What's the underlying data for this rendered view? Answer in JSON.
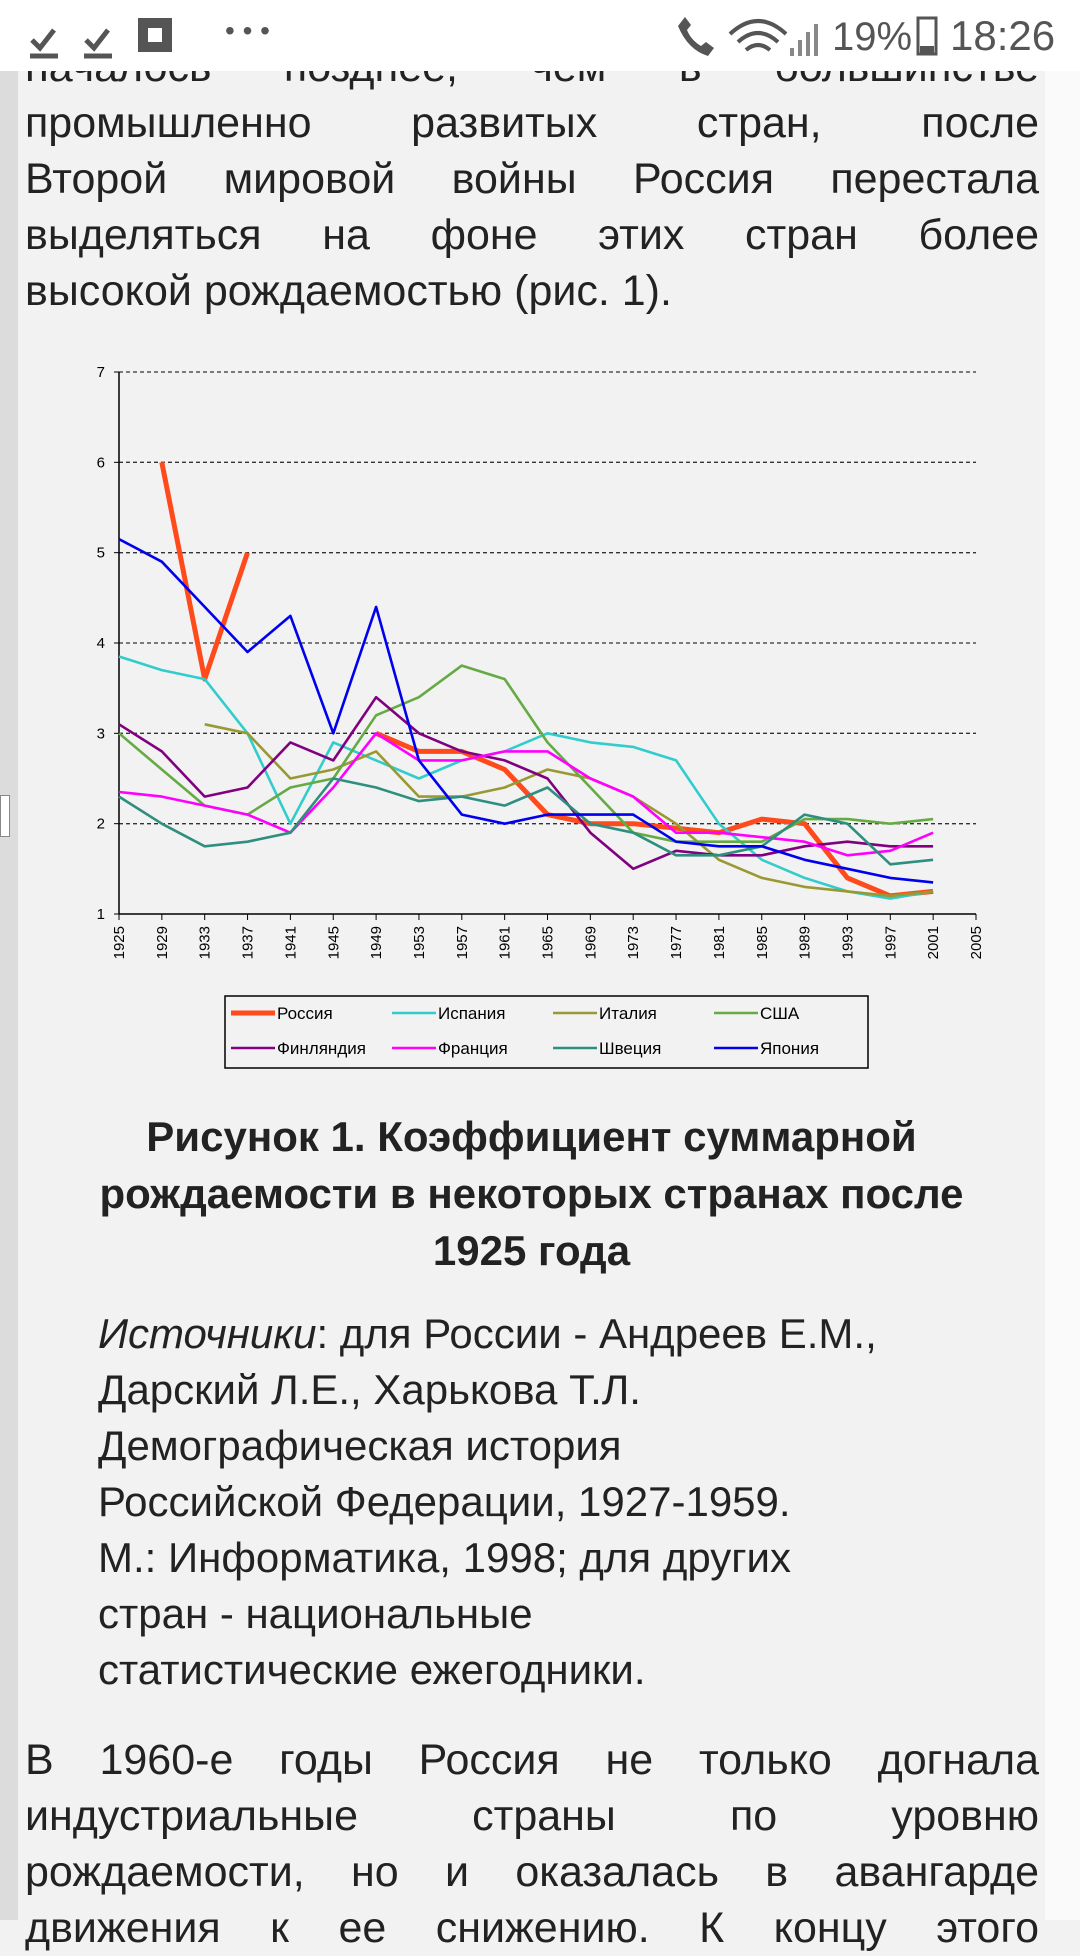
{
  "status_bar": {
    "battery": "19%",
    "time": "18:26"
  },
  "paragraph_1": {
    "lines": [
      "началось позднее, чем в большинстве",
      "промышленно развитых стран, после",
      "Второй мировой войны Россия перестала",
      "выделяться на фоне этих стран более",
      "высокой рождаемостью (рис. 1)."
    ]
  },
  "chart_data": {
    "type": "line",
    "x": [
      1925,
      1929,
      1933,
      1937,
      1941,
      1945,
      1949,
      1953,
      1957,
      1961,
      1965,
      1969,
      1973,
      1977,
      1981,
      1985,
      1989,
      1993,
      1997,
      2001,
      2005
    ],
    "xlim": [
      1925,
      2005
    ],
    "xticks": [
      1925,
      1929,
      1933,
      1937,
      1941,
      1945,
      1949,
      1953,
      1957,
      1961,
      1965,
      1969,
      1973,
      1977,
      1981,
      1985,
      1989,
      1993,
      1997,
      2001,
      2005
    ],
    "ylim": [
      1,
      7
    ],
    "yticks": [
      1,
      2,
      3,
      4,
      5,
      6,
      7
    ],
    "grid": true,
    "series": [
      {
        "name": "Россия",
        "color": "#ff4a1c",
        "values": [
          null,
          6.0,
          3.6,
          5.0,
          null,
          null,
          3.0,
          2.8,
          2.8,
          2.6,
          2.1,
          2.0,
          2.0,
          1.95,
          1.9,
          2.05,
          2.0,
          1.4,
          1.2,
          1.25,
          null
        ]
      },
      {
        "name": "Испания",
        "color": "#33cccc",
        "values": [
          3.85,
          3.7,
          3.6,
          3.0,
          2.0,
          2.9,
          2.7,
          2.5,
          2.7,
          2.8,
          3.0,
          2.9,
          2.85,
          2.7,
          2.0,
          1.6,
          1.4,
          1.25,
          1.17,
          1.25,
          null
        ]
      },
      {
        "name": "Италия",
        "color": "#999933",
        "values": [
          null,
          null,
          3.1,
          3.0,
          2.5,
          2.6,
          2.8,
          2.3,
          2.3,
          2.4,
          2.6,
          2.5,
          2.3,
          2.0,
          1.6,
          1.4,
          1.3,
          1.25,
          1.2,
          1.25,
          null
        ]
      },
      {
        "name": "США",
        "color": "#66aa44",
        "values": [
          3.0,
          2.6,
          2.2,
          2.1,
          2.4,
          2.5,
          3.2,
          3.4,
          3.75,
          3.6,
          2.9,
          2.4,
          1.9,
          1.8,
          1.8,
          1.8,
          2.05,
          2.05,
          2.0,
          2.05,
          null
        ]
      },
      {
        "name": "Финляндия",
        "color": "#800080",
        "values": [
          3.1,
          2.8,
          2.3,
          2.4,
          2.9,
          2.7,
          3.4,
          3.0,
          2.8,
          2.7,
          2.5,
          1.9,
          1.5,
          1.7,
          1.65,
          1.65,
          1.75,
          1.8,
          1.75,
          1.75,
          null
        ]
      },
      {
        "name": "Франция",
        "color": "#ff00ff",
        "values": [
          2.35,
          2.3,
          2.2,
          2.1,
          1.9,
          2.4,
          3.0,
          2.7,
          2.7,
          2.8,
          2.8,
          2.5,
          2.3,
          1.9,
          1.9,
          1.85,
          1.8,
          1.65,
          1.7,
          1.9,
          null
        ]
      },
      {
        "name": "Швеция",
        "color": "#2f8f7f",
        "values": [
          2.3,
          2.0,
          1.75,
          1.8,
          1.9,
          2.5,
          2.4,
          2.25,
          2.3,
          2.2,
          2.4,
          2.0,
          1.9,
          1.65,
          1.65,
          1.75,
          2.1,
          2.0,
          1.55,
          1.6,
          null
        ]
      },
      {
        "name": "Япония",
        "color": "#0000ee",
        "values": [
          5.15,
          4.9,
          4.4,
          3.9,
          4.3,
          3.0,
          4.4,
          2.7,
          2.1,
          2.0,
          2.1,
          2.1,
          2.1,
          1.8,
          1.75,
          1.75,
          1.6,
          1.5,
          1.4,
          1.35,
          null
        ]
      }
    ]
  },
  "caption": {
    "lines": [
      "Рисунок 1. Коэффициент суммарной",
      "рождаемости в некоторых странах после",
      "1925 года"
    ]
  },
  "sources": {
    "label": "Источники",
    "lines": [
      ": для России - Андреев Е.М.,",
      "Дарский Л.Е., Харькова Т.Л.",
      "Демографическая история",
      "Российской Федерации, 1927-1959.",
      "М.: Информатика, 1998; для других",
      "стран - национальные",
      "статистические ежегодники."
    ]
  },
  "paragraph_2": {
    "lines": [
      "В 1960-е годы Россия не только догнала",
      "индустриальные страны по уровню",
      "рождаемости, но и оказалась в авангарде",
      "движения к ее снижению. К концу этого"
    ]
  }
}
